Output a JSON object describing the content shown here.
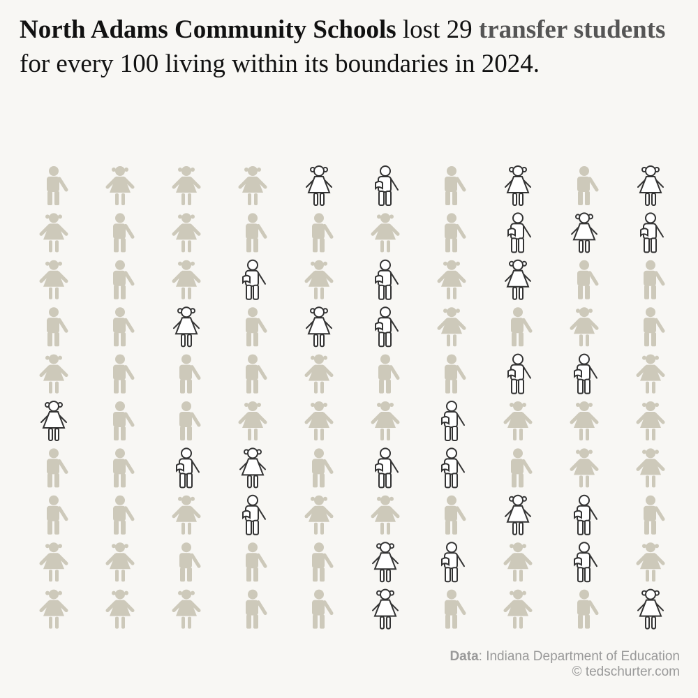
{
  "chart_data": {
    "type": "pictogram",
    "title": [
      {
        "text": "North Adams Community Schools",
        "bold": true,
        "color": "#111111"
      },
      {
        "text": " lost 29 ",
        "bold": false,
        "color": "#111111"
      },
      {
        "text": "transfer students",
        "bold": true,
        "color": "#555555"
      },
      {
        "text": "  for every 100 living within its boundaries in 2024.",
        "bold": false,
        "color": "#111111"
      }
    ],
    "value": 29,
    "total": 100,
    "highlight_color": "#333333",
    "base_color": "#cdc9ba",
    "source_label": "Data",
    "source": ": Indiana Department of Education",
    "credit": "© tedschurter.com"
  }
}
